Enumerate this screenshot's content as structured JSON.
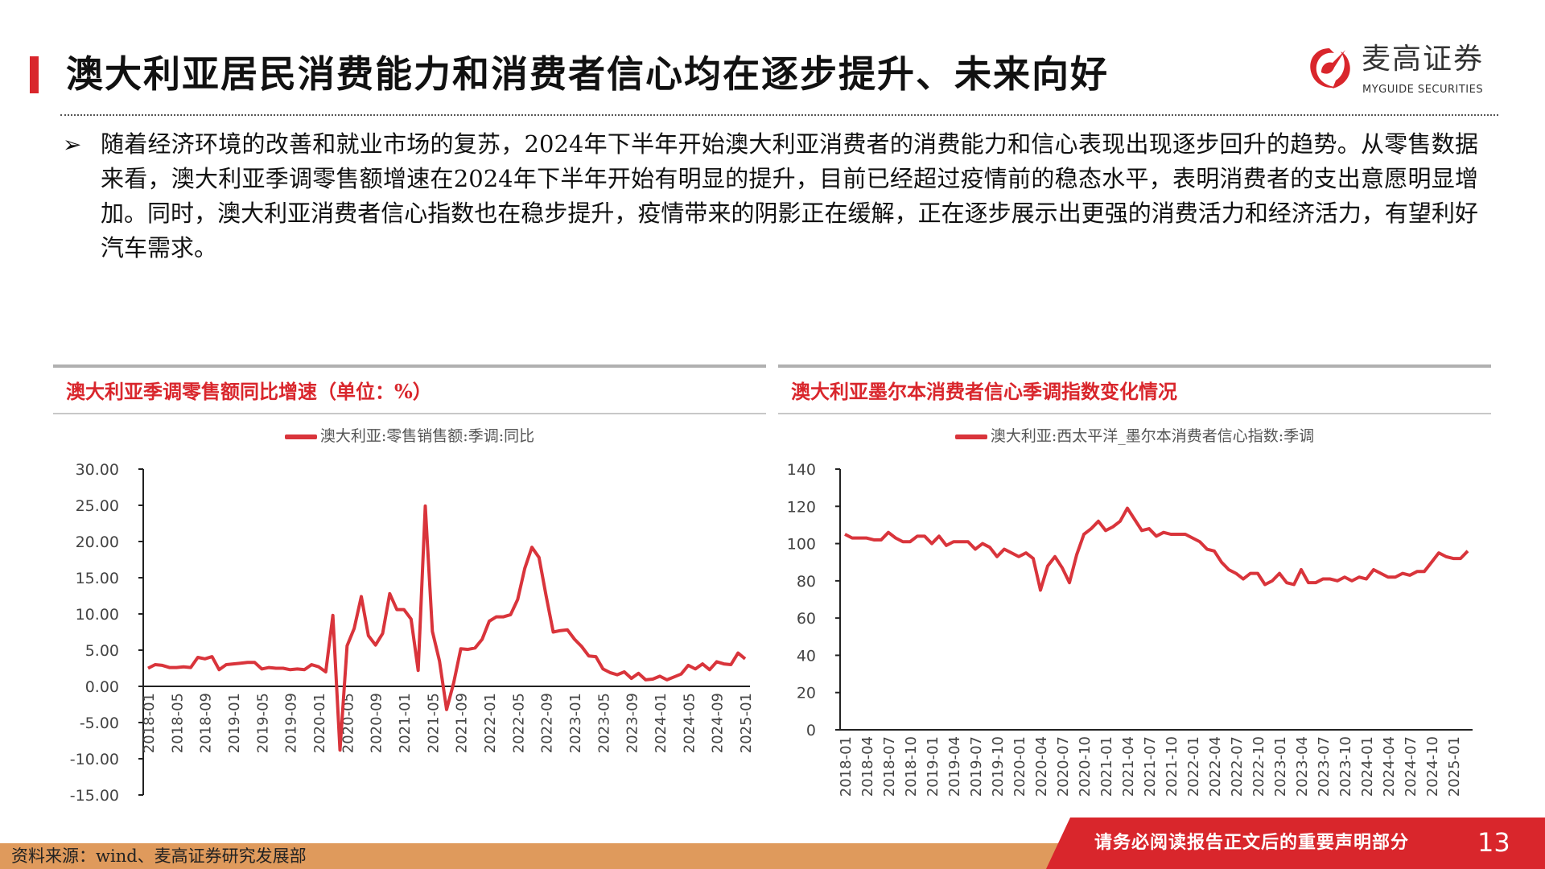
{
  "header": {
    "title": "澳大利亚居民消费能力和消费者信心均在逐步提升、未来向好",
    "logo_cn": "麦高证券",
    "logo_en": "MYGUIDE SECURITIES"
  },
  "body": {
    "bullet": "➢",
    "paragraph": "随着经济环境的改善和就业市场的复苏，2024年下半年开始澳大利亚消费者的消费能力和信心表现出现逐步回升的趋势。从零售数据来看，澳大利亚季调零售额增速在2024年下半年开始有明显的提升，目前已经超过疫情前的稳态水平，表明消费者的支出意愿明显增加。同时，澳大利亚消费者信心指数也在稳步提升，疫情带来的阴影正在缓解，正在逐步展示出更强的消费活力和经济活力，有望利好汽车需求。"
  },
  "footer": {
    "source": "资料来源：wind、麦高证券研究发展部",
    "note": "请务必阅读报告正文后的重要声明部分",
    "page": "13"
  },
  "colors": {
    "accent": "#d9262c",
    "line": "#d9343b",
    "footer_orange": "#df9a5c"
  },
  "chart_data": [
    {
      "type": "line",
      "title": "澳大利亚季调零售额同比增速（单位：%）",
      "series": [
        {
          "name": "澳大利亚:零售销售额:季调:同比",
          "values": [
            2.5,
            3.0,
            2.9,
            2.6,
            2.6,
            2.7,
            2.6,
            4.0,
            3.8,
            4.1,
            2.3,
            3.0,
            3.1,
            3.2,
            3.3,
            3.3,
            2.4,
            2.6,
            2.5,
            2.5,
            2.3,
            2.4,
            2.3,
            3.0,
            2.7,
            2.0,
            9.8,
            -8.8,
            5.6,
            8.0,
            12.4,
            7.0,
            5.7,
            7.3,
            12.8,
            10.6,
            10.6,
            9.3,
            2.2,
            24.9,
            7.6,
            3.5,
            -3.2,
            0.5,
            5.2,
            5.1,
            5.3,
            6.5,
            9.0,
            9.6,
            9.6,
            9.9,
            12.0,
            16.3,
            19.2,
            17.8,
            12.5,
            7.5,
            7.7,
            7.8,
            6.5,
            5.5,
            4.2,
            4.1,
            2.4,
            1.9,
            1.6,
            2.0,
            1.1,
            1.8,
            0.9,
            1.0,
            1.4,
            0.9,
            1.3,
            1.7,
            2.9,
            2.4,
            3.1,
            2.3,
            3.4,
            3.1,
            3.0,
            4.6,
            3.8
          ]
        }
      ],
      "x_start": "2018-01",
      "x_tick_labels": [
        "2018-01",
        "2018-05",
        "2018-09",
        "2019-01",
        "2019-05",
        "2019-09",
        "2020-01",
        "2020-05",
        "2020-09",
        "2021-01",
        "2021-05",
        "2021-09",
        "2022-01",
        "2022-05",
        "2022-09",
        "2023-01",
        "2023-05",
        "2023-09",
        "2024-01",
        "2024-05",
        "2024-09",
        "2025-01"
      ],
      "y_ticks": [
        "30.00",
        "25.00",
        "20.00",
        "15.00",
        "10.00",
        "5.00",
        "0.00",
        "-5.00",
        "-10.00",
        "-15.00"
      ],
      "ylim": [
        -15,
        30
      ],
      "grid": false,
      "legend": "top-center"
    },
    {
      "type": "line",
      "title": "澳大利亚墨尔本消费者信心季调指数变化情况",
      "series": [
        {
          "name": "澳大利亚:西太平洋_墨尔本消费者信心指数:季调",
          "values": [
            105,
            103,
            103,
            103,
            102,
            102,
            106,
            103,
            101,
            101,
            104,
            104,
            100,
            104,
            99,
            101,
            101,
            101,
            97,
            100,
            98,
            93,
            97,
            95,
            93,
            95,
            92,
            75,
            88,
            93,
            87,
            79,
            94,
            105,
            108,
            112,
            107,
            109,
            112,
            119,
            113,
            107,
            108,
            104,
            106,
            105,
            105,
            105,
            103,
            101,
            97,
            96,
            90,
            86,
            84,
            81,
            84,
            84,
            78,
            80,
            84,
            79,
            78,
            86,
            79,
            79,
            81,
            81,
            80,
            82,
            80,
            82,
            81,
            86,
            84,
            82,
            82,
            84,
            83,
            85,
            85,
            90,
            95,
            93,
            92,
            92,
            96
          ]
        }
      ],
      "x_start": "2018-01",
      "x_tick_labels": [
        "2018-01",
        "2018-04",
        "2018-07",
        "2018-10",
        "2019-01",
        "2019-04",
        "2019-07",
        "2019-10",
        "2020-01",
        "2020-04",
        "2020-07",
        "2020-10",
        "2021-01",
        "2021-04",
        "2021-07",
        "2021-10",
        "2022-01",
        "2022-04",
        "2022-07",
        "2022-10",
        "2023-01",
        "2023-04",
        "2023-07",
        "2023-10",
        "2024-01",
        "2024-04",
        "2024-07",
        "2024-10",
        "2025-01"
      ],
      "y_ticks": [
        "140",
        "120",
        "100",
        "80",
        "60",
        "40",
        "20",
        "0"
      ],
      "ylim": [
        0,
        140
      ],
      "grid": false,
      "legend": "top-center"
    }
  ]
}
